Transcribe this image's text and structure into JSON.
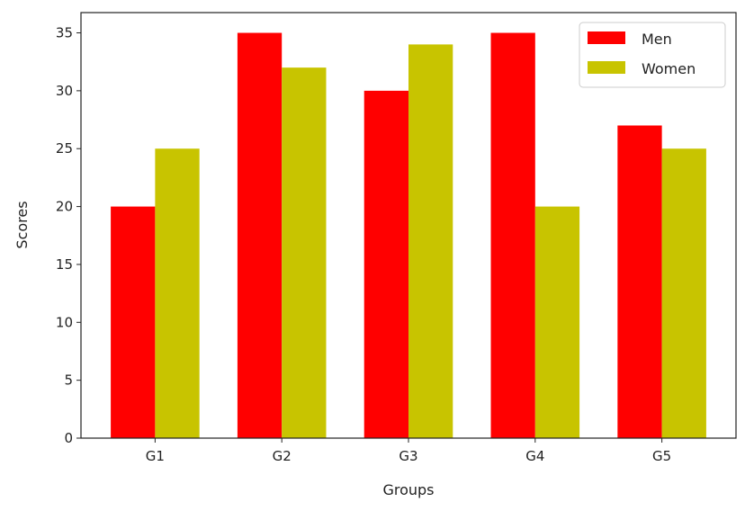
{
  "chart_data": {
    "type": "bar",
    "categories": [
      "G1",
      "G2",
      "G3",
      "G4",
      "G5"
    ],
    "series": [
      {
        "name": "Men",
        "values": [
          20,
          35,
          30,
          35,
          27
        ],
        "color": "#ff0000"
      },
      {
        "name": "Women",
        "values": [
          25,
          32,
          34,
          20,
          25
        ],
        "color": "#c8c400"
      }
    ],
    "xlabel": "Groups",
    "ylabel": "Scores",
    "ylim": [
      0,
      36.75
    ],
    "yticks": [
      0,
      5,
      10,
      15,
      20,
      25,
      30,
      35
    ],
    "grid": false,
    "legend": "top-right"
  }
}
